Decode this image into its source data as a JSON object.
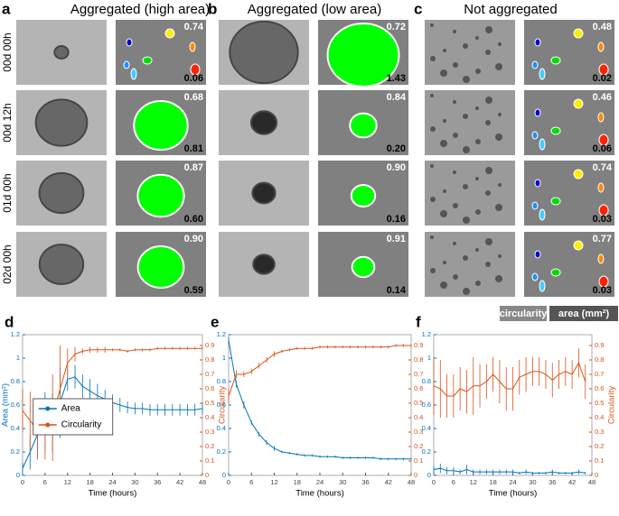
{
  "row_labels": [
    "00d 00h",
    "00d 12h",
    "01d 00h",
    "02d 00h"
  ],
  "panels": [
    {
      "letter": "a",
      "title": "Aggregated (high area)",
      "circularity": [
        "0.74",
        "0.68",
        "0.87",
        "0.90"
      ],
      "area": [
        "0.06",
        "0.81",
        "0.60",
        "0.59"
      ]
    },
    {
      "letter": "b",
      "title": "Aggregated (low area)",
      "circularity": [
        "0.72",
        "0.84",
        "0.90",
        "0.91"
      ],
      "area": [
        "1.43",
        "0.20",
        "0.16",
        "0.14"
      ]
    },
    {
      "letter": "c",
      "title": "Not aggregated",
      "circularity": [
        "0.48",
        "0.46",
        "0.74",
        "0.77"
      ],
      "area": [
        "0.02",
        "0.06",
        "0.03",
        "0.03"
      ]
    }
  ],
  "key": {
    "circularity": "circularity",
    "area": "area (mm²)"
  },
  "chart_data": [
    {
      "type": "line",
      "panel_label": "d",
      "xlabel": "Time (hours)",
      "ylabel": "Area (mm²)",
      "y2label": "Circularity",
      "legend": "center",
      "x": [
        0,
        2,
        4,
        6,
        8,
        10,
        12,
        14,
        16,
        18,
        20,
        22,
        24,
        26,
        28,
        30,
        32,
        34,
        36,
        38,
        40,
        42,
        44,
        46,
        48
      ],
      "xlim": [
        0,
        48
      ],
      "xticks": [
        0,
        6,
        12,
        18,
        24,
        30,
        36,
        42,
        48
      ],
      "ylim": [
        0,
        1.2
      ],
      "yticks": [
        0,
        0.2,
        0.4,
        0.6,
        0.8,
        1,
        1.2
      ],
      "y2lim": [
        0,
        0.975
      ],
      "y2ticks": [
        0,
        0.1,
        0.2,
        0.3,
        0.4,
        0.5,
        0.6,
        0.7,
        0.8,
        0.9
      ],
      "series": [
        {
          "name": "Area",
          "color": "#0072bd",
          "values": [
            0.06,
            0.2,
            0.35,
            0.46,
            0.45,
            0.62,
            0.82,
            0.84,
            0.76,
            0.72,
            0.68,
            0.65,
            0.62,
            0.6,
            0.58,
            0.57,
            0.57,
            0.56,
            0.56,
            0.56,
            0.56,
            0.56,
            0.56,
            0.56,
            0.57
          ],
          "errors": [
            0.05,
            0.15,
            0.2,
            0.25,
            0.25,
            0.3,
            0.1,
            0.1,
            0.1,
            0.1,
            0.1,
            0.08,
            0.07,
            0.06,
            0.05,
            0.05,
            0.05,
            0.05,
            0.05,
            0.05,
            0.05,
            0.05,
            0.05,
            0.05,
            0.05
          ]
        },
        {
          "name": "Circularity",
          "color": "#d95319",
          "axis": "y2",
          "values": [
            0.45,
            0.38,
            0.31,
            0.31,
            0.4,
            0.6,
            0.78,
            0.84,
            0.86,
            0.87,
            0.87,
            0.87,
            0.87,
            0.87,
            0.86,
            0.87,
            0.87,
            0.87,
            0.88,
            0.88,
            0.88,
            0.88,
            0.88,
            0.88,
            0.88
          ],
          "errors": [
            0.15,
            0.2,
            0.2,
            0.2,
            0.3,
            0.3,
            0.1,
            0.05,
            0.02,
            0.02,
            0.02,
            0.02,
            0.01,
            0.01,
            0.01,
            0.01,
            0.01,
            0.01,
            0.01,
            0.01,
            0.01,
            0.01,
            0.01,
            0.01,
            0.01
          ]
        }
      ]
    },
    {
      "type": "line",
      "panel_label": "e",
      "xlabel": "Time (hours)",
      "x": [
        0,
        2,
        4,
        6,
        8,
        10,
        12,
        14,
        16,
        18,
        20,
        22,
        24,
        26,
        28,
        30,
        32,
        34,
        36,
        38,
        40,
        42,
        44,
        46,
        48
      ],
      "xlim": [
        0,
        48
      ],
      "xticks": [
        0,
        6,
        12,
        18,
        24,
        30,
        36,
        42,
        48
      ],
      "ylim": [
        0,
        1.2
      ],
      "yticks": [
        0,
        0.2,
        0.4,
        0.6,
        0.8,
        1,
        1.2
      ],
      "y2lim": [
        0,
        0.975
      ],
      "y2ticks": [
        0,
        0.1,
        0.2,
        0.3,
        0.4,
        0.5,
        0.6,
        0.7,
        0.8,
        0.9
      ],
      "series": [
        {
          "name": "Area",
          "color": "#0072bd",
          "values": [
            1.15,
            0.78,
            0.6,
            0.45,
            0.35,
            0.28,
            0.23,
            0.2,
            0.19,
            0.18,
            0.17,
            0.17,
            0.16,
            0.16,
            0.16,
            0.15,
            0.15,
            0.15,
            0.15,
            0.15,
            0.14,
            0.14,
            0.14,
            0.14,
            0.14
          ],
          "errors": [
            0.03,
            0.03,
            0.03,
            0.02,
            0.02,
            0.02,
            0.02,
            0.01,
            0.01,
            0.01,
            0.01,
            0.01,
            0.01,
            0.01,
            0.01,
            0.01,
            0.01,
            0.01,
            0.01,
            0.01,
            0.01,
            0.01,
            0.01,
            0.01,
            0.01
          ]
        },
        {
          "name": "Circularity",
          "color": "#d95319",
          "axis": "y2",
          "values": [
            0.55,
            0.7,
            0.7,
            0.72,
            0.76,
            0.8,
            0.84,
            0.86,
            0.87,
            0.88,
            0.88,
            0.88,
            0.89,
            0.89,
            0.89,
            0.89,
            0.89,
            0.89,
            0.89,
            0.89,
            0.89,
            0.89,
            0.9,
            0.9,
            0.9
          ],
          "errors": [
            0.05,
            0.03,
            0.02,
            0.02,
            0.02,
            0.02,
            0.02,
            0.01,
            0.01,
            0.01,
            0.01,
            0.01,
            0.01,
            0.01,
            0.01,
            0.01,
            0.01,
            0.01,
            0.01,
            0.01,
            0.01,
            0.01,
            0.01,
            0.01,
            0.01
          ]
        }
      ]
    },
    {
      "type": "line",
      "panel_label": "f",
      "xlabel": "Time (hours)",
      "y2label": "Circularity",
      "x": [
        0,
        2,
        4,
        6,
        8,
        10,
        12,
        14,
        16,
        18,
        20,
        22,
        24,
        26,
        28,
        30,
        32,
        34,
        36,
        38,
        40,
        42,
        44,
        46
      ],
      "xlim": [
        0,
        48
      ],
      "xticks": [
        0,
        6,
        12,
        18,
        24,
        30,
        36,
        42,
        48
      ],
      "ylim": [
        0,
        1.2
      ],
      "yticks": [
        0,
        0.2,
        0.4,
        0.6,
        0.8,
        1,
        1.2
      ],
      "y2lim": [
        0,
        0.975
      ],
      "y2ticks": [
        0,
        0.1,
        0.2,
        0.3,
        0.4,
        0.5,
        0.6,
        0.7,
        0.8,
        0.9
      ],
      "series": [
        {
          "name": "Area",
          "color": "#0072bd",
          "values": [
            0.05,
            0.06,
            0.04,
            0.04,
            0.03,
            0.05,
            0.03,
            0.03,
            0.03,
            0.03,
            0.03,
            0.03,
            0.03,
            0.02,
            0.03,
            0.02,
            0.02,
            0.02,
            0.03,
            0.02,
            0.02,
            0.02,
            0.03,
            0.02
          ],
          "errors": [
            0.03,
            0.04,
            0.03,
            0.03,
            0.02,
            0.04,
            0.02,
            0.02,
            0.02,
            0.02,
            0.02,
            0.02,
            0.02,
            0.01,
            0.02,
            0.01,
            0.01,
            0.01,
            0.02,
            0.01,
            0.01,
            0.01,
            0.02,
            0.01
          ]
        },
        {
          "name": "Circularity",
          "color": "#d95319",
          "axis": "y2",
          "values": [
            0.62,
            0.6,
            0.55,
            0.55,
            0.6,
            0.58,
            0.62,
            0.62,
            0.65,
            0.7,
            0.65,
            0.6,
            0.6,
            0.68,
            0.7,
            0.72,
            0.72,
            0.7,
            0.66,
            0.7,
            0.72,
            0.7,
            0.78,
            0.65
          ],
          "errors": [
            0.2,
            0.2,
            0.15,
            0.15,
            0.15,
            0.15,
            0.2,
            0.15,
            0.12,
            0.12,
            0.15,
            0.15,
            0.15,
            0.12,
            0.12,
            0.1,
            0.1,
            0.1,
            0.12,
            0.1,
            0.1,
            0.1,
            0.1,
            0.12
          ]
        }
      ]
    }
  ]
}
